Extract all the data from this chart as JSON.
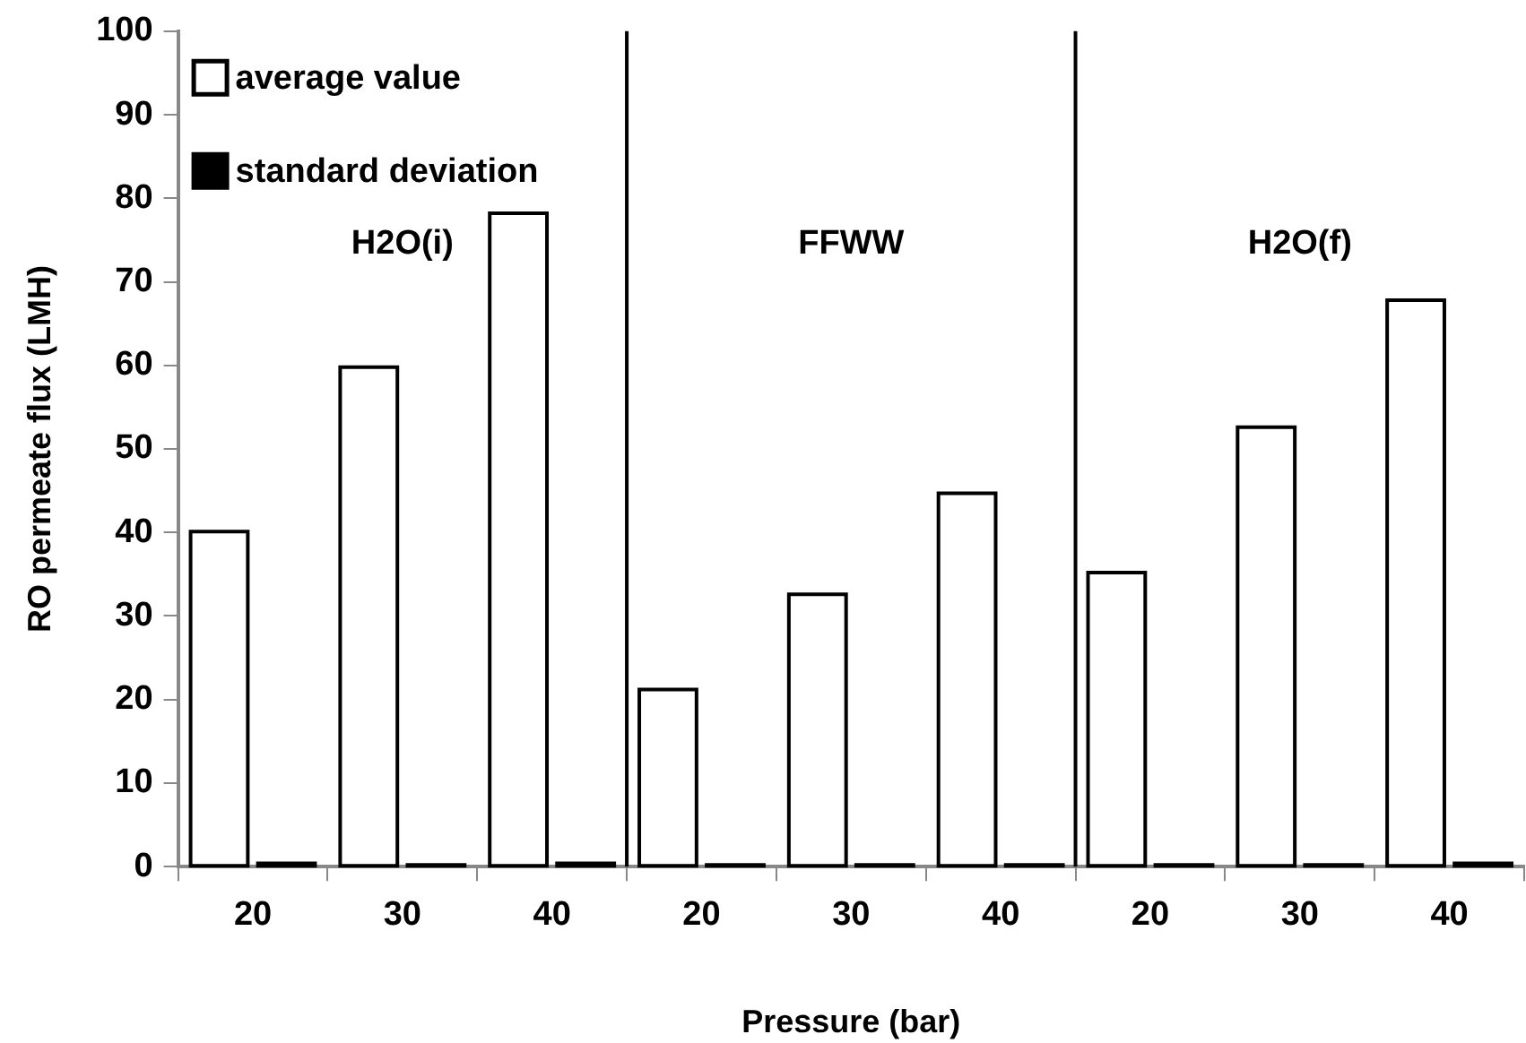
{
  "chart_data": {
    "type": "bar",
    "xlabel": "Pressure (bar)",
    "ylabel": "RO permeate flux (LMH)",
    "categories": [
      "20",
      "30",
      "40",
      "20",
      "30",
      "40",
      "20",
      "30",
      "40"
    ],
    "series": [
      {
        "name": "average value",
        "color": "#ffffff",
        "values": [
          40.1,
          59.8,
          78.2,
          21.2,
          32.6,
          44.7,
          35.2,
          52.6,
          67.8
        ]
      },
      {
        "name": "standard deviation",
        "color": "#000000",
        "values": [
          0.4,
          0.2,
          0.4,
          0.2,
          0.2,
          0.2,
          0.2,
          0.2,
          0.4
        ]
      }
    ],
    "ylim": [
      0,
      100
    ],
    "yticks": [
      0,
      10,
      20,
      30,
      40,
      50,
      60,
      70,
      80,
      90,
      100
    ],
    "grid": false,
    "legend": "top left",
    "annotations": [
      "H2O(i)",
      "FFWW",
      "H2O(f)"
    ]
  }
}
